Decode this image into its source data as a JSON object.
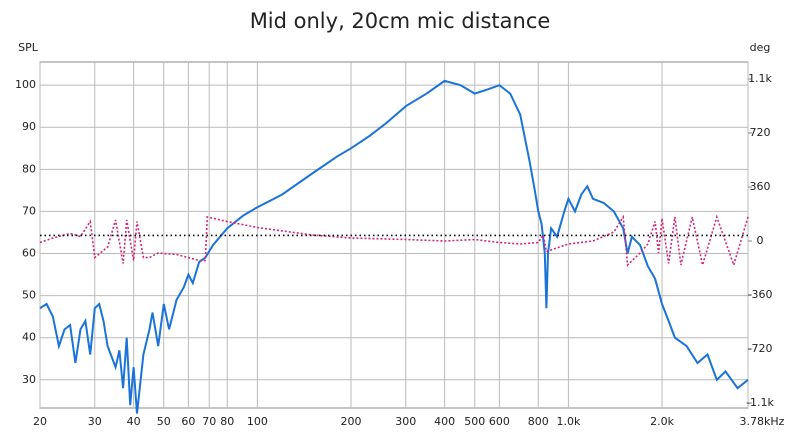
{
  "chart_data": {
    "type": "line",
    "title": "Mid only, 20cm mic distance",
    "y_label": "SPL",
    "y2_label": "deg",
    "log_x": true,
    "grid": true,
    "xlim": [
      20,
      3780
    ],
    "xticks": [
      20,
      30,
      40,
      50,
      60,
      70,
      80,
      100,
      200,
      300,
      400,
      500,
      600,
      800,
      {
        "value": 1000,
        "label": "1.0k"
      },
      {
        "value": 2000,
        "label": "2.0k"
      },
      {
        "value": 3780,
        "label": "3.78kHz"
      }
    ],
    "ylim": [
      23.3,
      105.5
    ],
    "yticks": [
      30,
      40,
      50,
      60,
      70,
      80,
      90,
      100
    ],
    "y2lim": [
      -1113,
      1193
    ],
    "y2ticks": [
      {
        "value": -1080,
        "label": "-1.1k"
      },
      -720,
      -360,
      0,
      360,
      720,
      {
        "value": 1080,
        "label": "1.1k"
      }
    ],
    "series": [
      {
        "color": "#1a73d9",
        "dash": "none",
        "x": [
          20,
          21,
          22,
          23,
          24,
          25,
          26,
          27,
          28,
          29,
          30,
          31,
          32,
          33,
          35,
          36,
          37,
          38,
          39,
          40,
          41,
          43,
          45,
          46,
          48,
          50,
          52,
          55,
          58,
          60,
          62,
          65,
          68,
          72,
          80,
          90,
          100,
          120,
          150,
          180,
          200,
          230,
          260,
          300,
          350,
          400,
          450,
          500,
          550,
          600,
          650,
          700,
          750,
          780,
          800,
          820,
          840,
          850,
          860,
          880,
          920,
          970,
          1000,
          1050,
          1100,
          1150,
          1200,
          1300,
          1400,
          1500,
          1550,
          1600,
          1700,
          1800,
          1900,
          2000,
          2100,
          2200,
          2400,
          2600,
          2800,
          3000,
          3200,
          3500,
          3780
        ],
        "values": [
          47,
          48,
          45,
          38,
          42,
          43,
          34,
          42,
          44,
          36,
          47,
          48,
          44,
          38,
          33,
          37,
          28,
          40,
          24,
          33,
          22,
          36,
          42,
          46,
          38,
          48,
          42,
          49,
          52,
          55,
          53,
          58,
          59,
          62,
          66,
          69,
          71,
          74,
          79,
          83,
          85,
          88,
          91,
          95,
          98,
          101,
          100,
          98,
          99,
          100,
          98,
          93,
          82,
          75,
          70,
          67,
          60,
          47,
          60,
          66,
          64,
          70,
          73,
          70,
          74,
          76,
          73,
          72,
          70,
          66,
          60,
          64,
          62,
          57,
          54,
          48,
          44,
          40,
          38,
          34,
          36,
          30,
          32,
          28,
          30
        ]
      },
      {
        "color": "#d6237a",
        "dash": "2 2",
        "axis": "y2",
        "x": [
          20,
          22,
          25,
          27,
          29,
          30,
          33,
          35,
          37,
          38,
          40,
          41,
          43,
          45,
          48,
          55,
          65,
          68,
          69,
          80,
          100,
          150,
          200,
          300,
          400,
          500,
          600,
          700,
          800,
          830,
          850,
          1000,
          1200,
          1400,
          1500,
          1550,
          1700,
          1800,
          1900,
          1950,
          2000,
          2100,
          2200,
          2300,
          2500,
          2700,
          3000,
          3400,
          3780
        ],
        "values": [
          -10,
          20,
          50,
          30,
          130,
          -110,
          -40,
          140,
          -150,
          140,
          -130,
          130,
          -110,
          -110,
          -80,
          -90,
          -130,
          -130,
          160,
          130,
          90,
          40,
          20,
          10,
          0,
          10,
          -10,
          -20,
          -10,
          40,
          -70,
          -20,
          0,
          60,
          160,
          -160,
          -80,
          -20,
          130,
          -80,
          150,
          -150,
          160,
          -160,
          160,
          -160,
          160,
          -160,
          160
        ]
      },
      {
        "color": "#000000",
        "dash": "1.5 3",
        "x": [
          20,
          3780
        ],
        "values": [
          64.3,
          64.3
        ]
      }
    ]
  }
}
